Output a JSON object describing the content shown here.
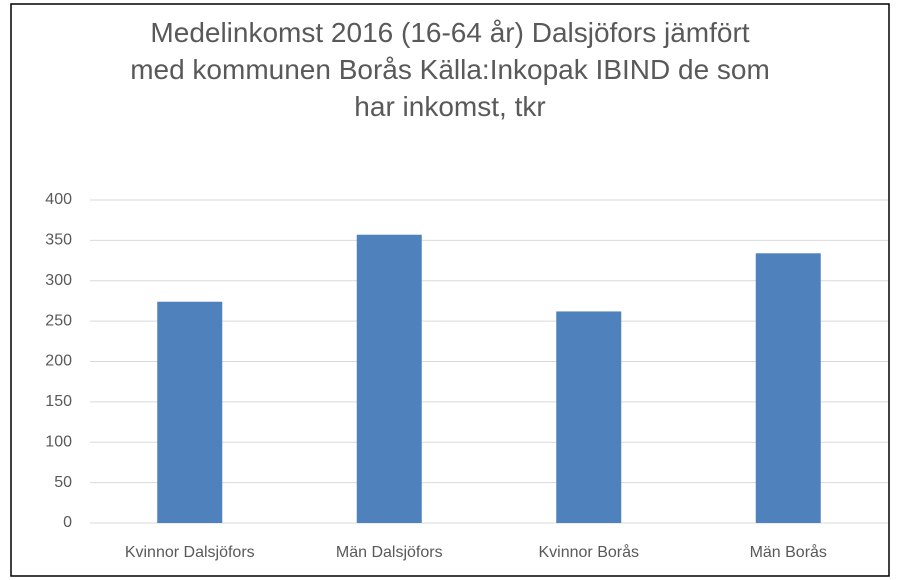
{
  "chart_data": {
    "type": "bar",
    "title": "Medelinkomst 2016 (16-64 år) Dalsjöfors jämfört med kommunen Borås Källa:Inkopak IBIND de som har inkomst, tkr",
    "categories": [
      "Kvinnor Dalsjöfors",
      "Män Dalsjöfors",
      "Kvinnor Borås",
      "Män Borås"
    ],
    "values": [
      274,
      357,
      262,
      334
    ],
    "color": "#4f81bd",
    "ylim": [
      0,
      400
    ],
    "yticks": [
      0,
      50,
      100,
      150,
      200,
      250,
      300,
      350,
      400
    ],
    "grid": true
  }
}
